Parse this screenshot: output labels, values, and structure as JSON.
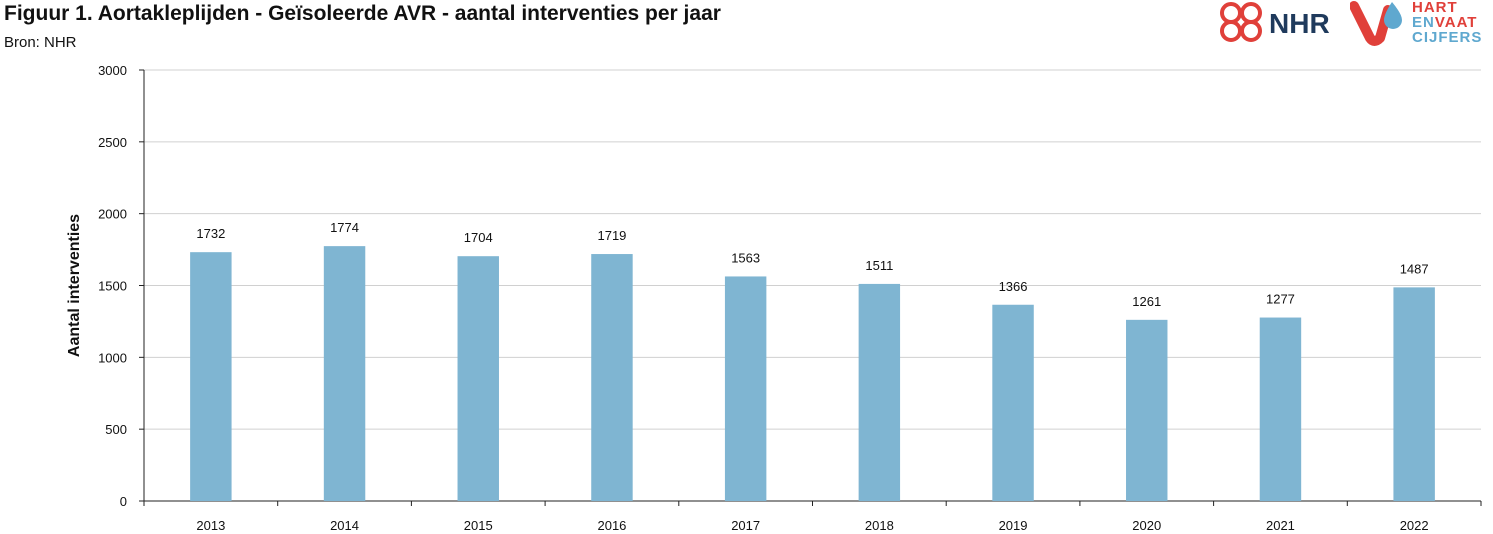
{
  "header": {
    "title": "Figuur 1. Aortakleplijden - Geïsoleerde AVR - aantal interventies per jaar",
    "source": "Bron: NHR"
  },
  "logos": {
    "nhr_text": "NHR",
    "hvc_line1": "HART",
    "hvc_line2_a": "EN",
    "hvc_line2_b": "VAAT",
    "hvc_line3": "CIJFERS",
    "colors": {
      "red": "#e0403a",
      "blue": "#5fa8cf",
      "navy": "#1f3a5c"
    }
  },
  "chart_data": {
    "type": "bar",
    "categories": [
      "2013",
      "2014",
      "2015",
      "2016",
      "2017",
      "2018",
      "2019",
      "2020",
      "2021",
      "2022"
    ],
    "values": [
      1732,
      1774,
      1704,
      1719,
      1563,
      1511,
      1366,
      1261,
      1277,
      1487
    ],
    "title": "",
    "xlabel": "",
    "ylabel": "Aantal interventies",
    "ylim": [
      0,
      3000
    ],
    "yticks": [
      0,
      500,
      1000,
      1500,
      2000,
      2500,
      3000
    ],
    "grid": true,
    "bar_color": "#7fb5d2",
    "data_labels": true
  }
}
